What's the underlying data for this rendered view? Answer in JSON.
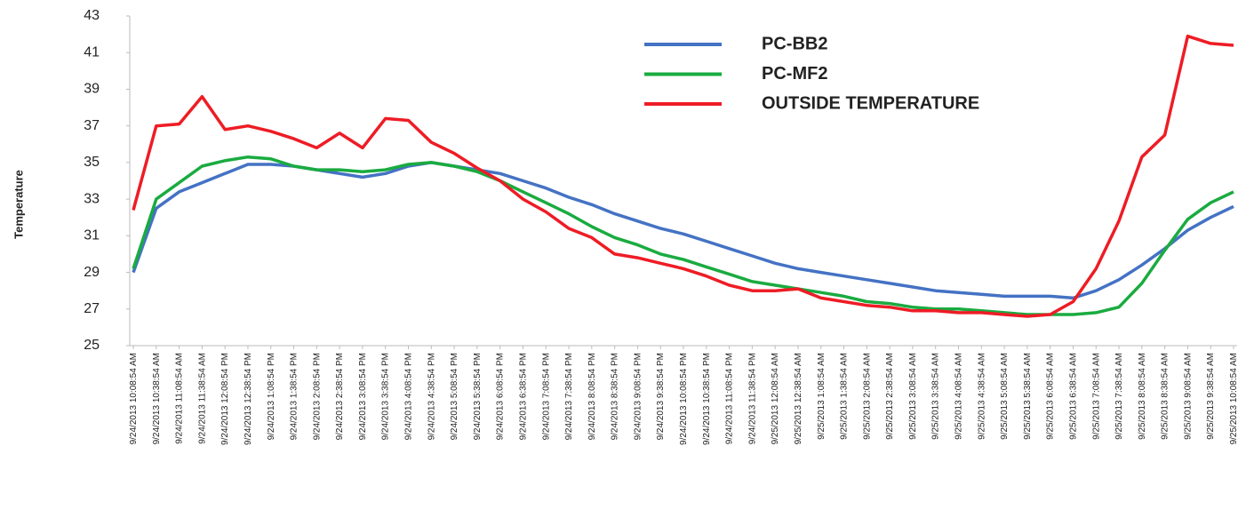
{
  "chart_data": {
    "type": "line",
    "ylabel": "Temperature",
    "categories": [
      "9/24/2013 10:08:54 AM",
      "9/24/2013 10:38:54 AM",
      "9/24/2013 11:08:54 AM",
      "9/24/2013 11:38:54 AM",
      "9/24/2013 12:08:54 PM",
      "9/24/2013 12:38:54 PM",
      "9/24/2013 1:08:54 PM",
      "9/24/2013 1:38:54 PM",
      "9/24/2013 2:08:54 PM",
      "9/24/2013 2:38:54 PM",
      "9/24/2013 3:08:54 PM",
      "9/24/2013 3:38:54 PM",
      "9/24/2013 4:08:54 PM",
      "9/24/2013 4:38:54 PM",
      "9/24/2013 5:08:54 PM",
      "9/24/2013 5:38:54 PM",
      "9/24/2013 6:08:54 PM",
      "9/24/2013 6:38:54 PM",
      "9/24/2013 7:08:54 PM",
      "9/24/2013 7:38:54 PM",
      "9/24/2013 8:08:54 PM",
      "9/24/2013 8:38:54 PM",
      "9/24/2013 9:08:54 PM",
      "9/24/2013 9:38:54 PM",
      "9/24/2013 10:08:54 PM",
      "9/24/2013 10:38:54 PM",
      "9/24/2013 11:08:54 PM",
      "9/24/2013 11:38:54 PM",
      "9/25/2013 12:08:54 AM",
      "9/25/2013 12:38:54 AM",
      "9/25/2013 1:08:54 AM",
      "9/25/2013 1:38:54 AM",
      "9/25/2013 2:08:54 AM",
      "9/25/2013 2:38:54 AM",
      "9/25/2013 3:08:54 AM",
      "9/25/2013 3:38:54 AM",
      "9/25/2013 4:08:54 AM",
      "9/25/2013 4:38:54 AM",
      "9/25/2013 5:08:54 AM",
      "9/25/2013 5:38:54 AM",
      "9/25/2013 6:08:54 AM",
      "9/25/2013 6:38:54 AM",
      "9/25/2013 7:08:54 AM",
      "9/25/2013 7:38:54 AM",
      "9/25/2013 8:08:54 AM",
      "9/25/2013 8:38:54 AM",
      "9/25/2013 9:08:54 AM",
      "9/25/2013 9:38:54 AM",
      "9/25/2013 10:08:54 AM"
    ],
    "series": [
      {
        "name": "PC-BB2",
        "color": "#4472c4",
        "values": [
          29,
          32.5,
          33.4,
          33.9,
          34.4,
          34.9,
          34.9,
          34.8,
          34.6,
          34.4,
          34.2,
          34.4,
          34.8,
          35,
          34.8,
          34.6,
          34.4,
          34,
          33.6,
          33.1,
          32.7,
          32.2,
          31.8,
          31.4,
          31.1,
          30.7,
          30.3,
          29.9,
          29.5,
          29.2,
          29,
          28.8,
          28.6,
          28.4,
          28.2,
          28,
          27.9,
          27.8,
          27.7,
          27.7,
          27.7,
          27.6,
          28,
          28.6,
          29.4,
          30.3,
          31.3,
          32,
          32.6
        ]
      },
      {
        "name": "PC-MF2",
        "color": "#1aab40",
        "values": [
          29.2,
          33,
          33.9,
          34.8,
          35.1,
          35.3,
          35.2,
          34.8,
          34.6,
          34.6,
          34.5,
          34.6,
          34.9,
          35,
          34.8,
          34.5,
          34,
          33.4,
          32.8,
          32.2,
          31.5,
          30.9,
          30.5,
          30,
          29.7,
          29.3,
          28.9,
          28.5,
          28.3,
          28.1,
          27.9,
          27.7,
          27.4,
          27.3,
          27.1,
          27,
          27,
          26.9,
          26.8,
          26.7,
          26.7,
          26.7,
          26.8,
          27.1,
          28.4,
          30.2,
          31.9,
          32.8,
          33.4
        ]
      },
      {
        "name": "OUTSIDE TEMPERATURE",
        "color": "#ee1c25",
        "values": [
          32.4,
          37,
          37.1,
          38.6,
          36.8,
          37,
          36.7,
          36.3,
          35.8,
          36.6,
          35.8,
          37.4,
          37.3,
          36.1,
          35.5,
          34.7,
          34,
          33,
          32.3,
          31.4,
          30.9,
          30,
          29.8,
          29.5,
          29.2,
          28.8,
          28.3,
          28,
          28,
          28.1,
          27.6,
          27.4,
          27.2,
          27.1,
          26.9,
          26.9,
          26.8,
          26.8,
          26.7,
          26.6,
          26.7,
          27.4,
          29.2,
          31.8,
          35.3,
          36.5,
          41.9,
          41.5,
          41.4
        ]
      }
    ],
    "ylim": [
      25,
      43
    ],
    "yticks": [
      25,
      27,
      29,
      31,
      33,
      35,
      37,
      39,
      41,
      43
    ],
    "grid": false
  }
}
